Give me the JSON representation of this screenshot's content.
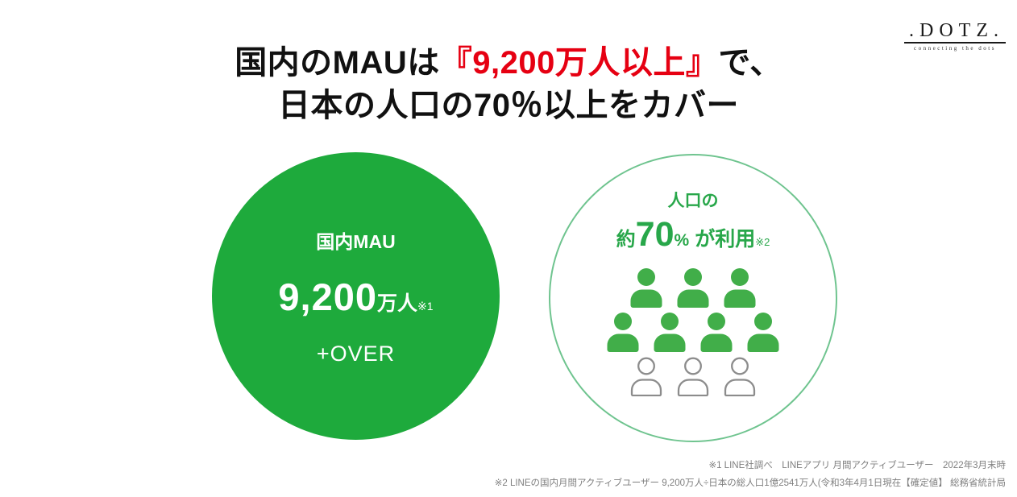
{
  "logo": {
    "text": ".DOTZ.",
    "tagline": "connecting the dots"
  },
  "title": {
    "line1_prefix": "国内のMAUは",
    "line1_highlight": "『9,200万人以上』",
    "line1_suffix": "で、",
    "line2": "日本の人口の70％以上をカバー",
    "highlight_color": "#E60012"
  },
  "mau_circle": {
    "label": "国内MAU",
    "value": "9,200",
    "unit": "万人",
    "note_ref": "※1",
    "over_label": "+OVER",
    "fill_color": "#1EAA3C"
  },
  "usage_circle": {
    "line1": "人口の",
    "approx": "約",
    "percent_value": "70",
    "percent_sign": "%",
    "suffix": "が利用",
    "note_ref": "※2",
    "text_color": "#28A74A",
    "border_color": "#6FC48F",
    "pictogram": {
      "type": "pictograph",
      "meaning": "7 of 10 people use the service (approx 70%)",
      "filled_count": 7,
      "outline_count": 3,
      "filled_color": "#41AE49",
      "outline_color": "#8C8C8C",
      "rows": [
        {
          "count": 3,
          "style": "filled"
        },
        {
          "count": 4,
          "style": "filled"
        },
        {
          "count": 3,
          "style": "outline"
        }
      ]
    }
  },
  "footnotes": {
    "line1": "※1 LINE社調べ　LINEアプリ 月間アクティブユーザー　2022年3月末時",
    "line2": "※2 LINEの国内月間アクティブユーザー 9,200万人÷日本の総人口1億2541万人(令和3年4月1日現在【確定値】 総務省統計局"
  }
}
